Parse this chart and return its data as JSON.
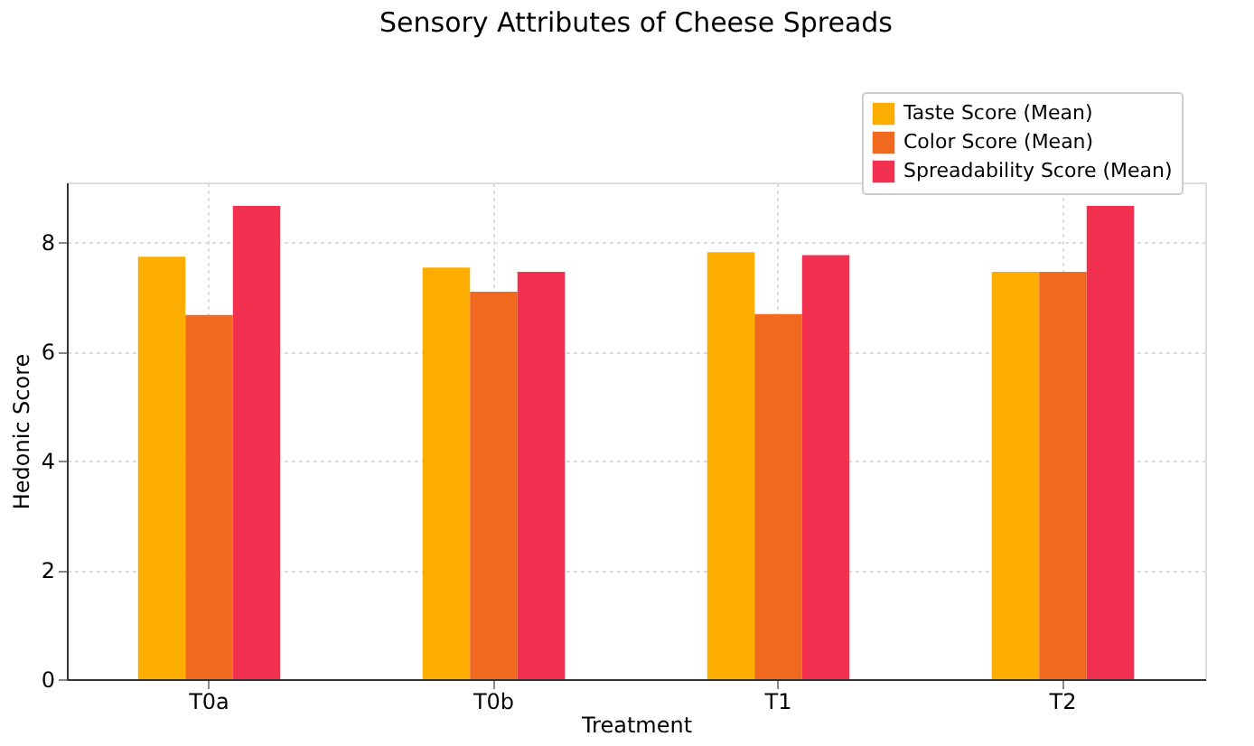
{
  "chart_data": {
    "type": "bar",
    "title": "Sensory Attributes of Cheese Spreads",
    "xlabel": "Treatment",
    "ylabel": "Hedonic Score",
    "categories": [
      "T0a",
      "T0b",
      "T1",
      "T2"
    ],
    "series": [
      {
        "name": "Taste Score (Mean)",
        "color": "#fcad00",
        "values": [
          7.74,
          7.54,
          7.82,
          7.46
        ]
      },
      {
        "name": "Color Score (Mean)",
        "color": "#f0691f",
        "values": [
          6.67,
          7.1,
          6.69,
          7.46
        ]
      },
      {
        "name": "Spreadability Score (Mean)",
        "color": "#f2304f",
        "values": [
          8.67,
          7.46,
          7.77,
          8.67
        ]
      }
    ],
    "ylim": [
      0,
      9.1
    ],
    "yticks": [
      0,
      2,
      4,
      6,
      8
    ],
    "grid": true,
    "legend": "top right"
  }
}
